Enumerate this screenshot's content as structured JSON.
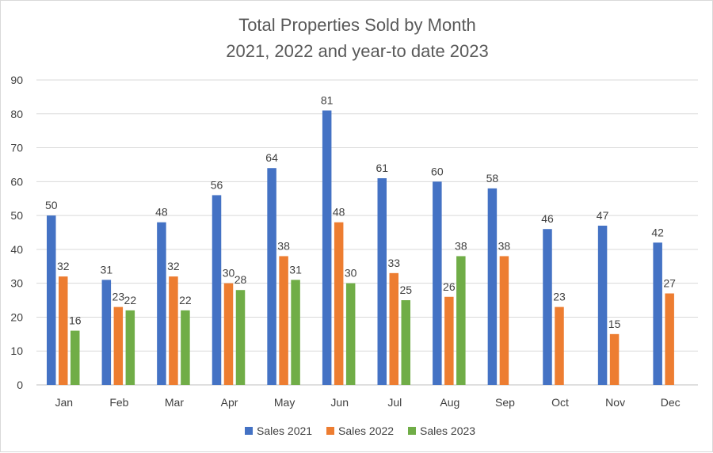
{
  "chart_data": {
    "type": "bar",
    "title_lines": [
      "Total Properties Sold by Month",
      "2021, 2022 and year-to date 2023"
    ],
    "xlabel": "",
    "ylabel": "",
    "ylim": [
      0,
      90
    ],
    "y_ticks": [
      0,
      10,
      20,
      30,
      40,
      50,
      60,
      70,
      80,
      90
    ],
    "grid": true,
    "legend_position": "bottom",
    "categories": [
      "Jan",
      "Feb",
      "Mar",
      "Apr",
      "May",
      "Jun",
      "Jul",
      "Aug",
      "Sep",
      "Oct",
      "Nov",
      "Dec"
    ],
    "series": [
      {
        "name": "Sales 2021",
        "color": "#4472c4",
        "values": [
          50,
          31,
          48,
          56,
          64,
          81,
          61,
          60,
          58,
          46,
          47,
          42
        ]
      },
      {
        "name": "Sales 2022",
        "color": "#ed7d31",
        "values": [
          32,
          23,
          32,
          30,
          38,
          48,
          33,
          26,
          38,
          23,
          15,
          27
        ]
      },
      {
        "name": "Sales 2023",
        "color": "#70ad47",
        "values": [
          16,
          22,
          22,
          28,
          31,
          30,
          25,
          38,
          null,
          null,
          null,
          null
        ]
      }
    ]
  }
}
